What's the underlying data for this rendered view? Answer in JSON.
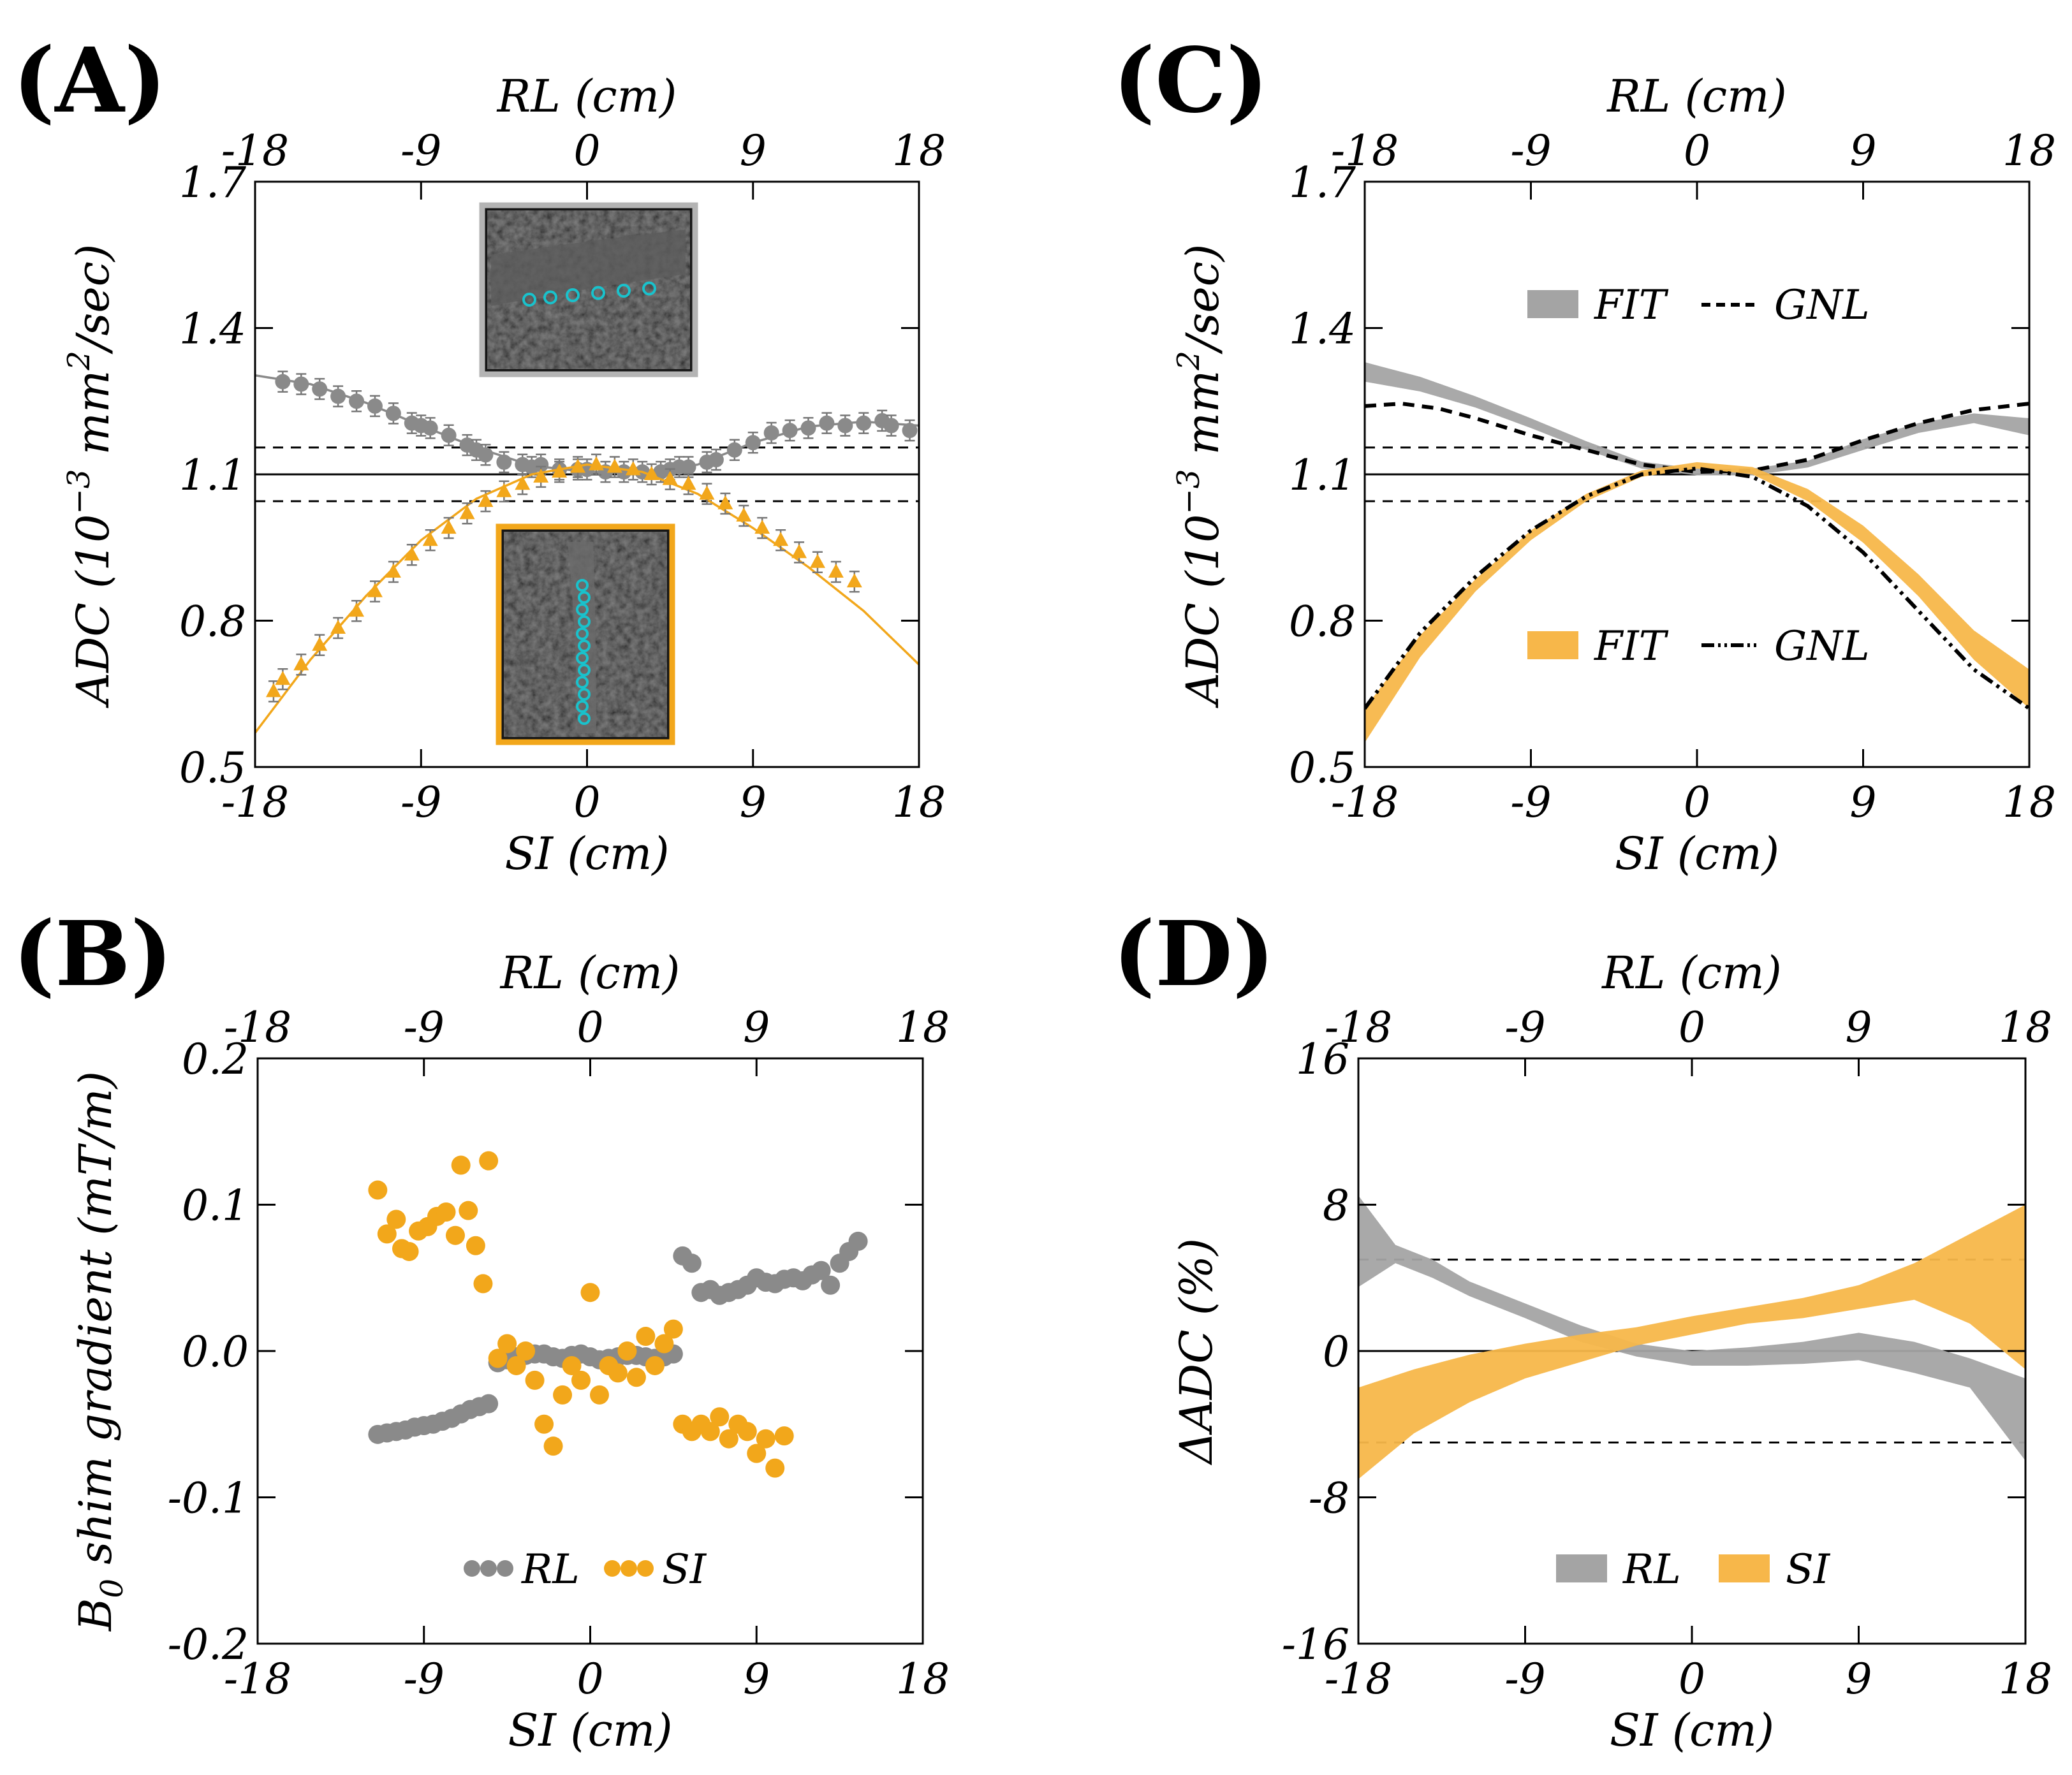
{
  "colors": {
    "gray": "#8a8a8a",
    "gray_band": "#a4a4a4",
    "orange": "#f2a71b",
    "orange_band": "#f7b74a",
    "cyan": "#19c2cc"
  },
  "chart_data": [
    {
      "id": "A",
      "type": "scatter",
      "label": "(A)",
      "title_top": "RL (cm)",
      "xlabel": "SI (cm)",
      "ylabel_parts": [
        "ADC (10",
        "−3",
        " mm",
        "2",
        "/sec)"
      ],
      "xlim": [
        -18,
        18
      ],
      "ylim": [
        0.5,
        1.7
      ],
      "xticks": [
        "-18",
        "-9",
        "0",
        "9",
        "18"
      ],
      "yticks": [
        "0.5",
        "0.8",
        "1.1",
        "1.4",
        "1.7"
      ],
      "reference_lines": [
        {
          "y": 1.1,
          "style": "solid"
        },
        {
          "y": 1.155,
          "style": "dashed"
        },
        {
          "y": 1.045,
          "style": "dashed"
        }
      ],
      "series": [
        {
          "name": "RL",
          "color": "gray",
          "marker": "circle",
          "x": [
            -16.5,
            -15.5,
            -14.5,
            -13.5,
            -12.5,
            -11.5,
            -10.5,
            -9.5,
            -9,
            -8.5,
            -7.5,
            -6.5,
            -6,
            -5.5,
            -4.5,
            -3.5,
            -3,
            -2.5,
            -1.5,
            -0.5,
            0,
            1,
            2,
            3,
            4,
            4.5,
            5,
            5.5,
            6.5,
            7,
            8,
            9,
            10,
            11,
            12,
            13,
            14,
            15,
            16,
            16.5,
            17.5
          ],
          "y": [
            1.29,
            1.285,
            1.275,
            1.26,
            1.25,
            1.24,
            1.225,
            1.205,
            1.2,
            1.195,
            1.18,
            1.16,
            1.15,
            1.14,
            1.125,
            1.12,
            1.115,
            1.12,
            1.11,
            1.11,
            1.11,
            1.105,
            1.105,
            1.105,
            1.105,
            1.11,
            1.115,
            1.115,
            1.125,
            1.13,
            1.15,
            1.165,
            1.185,
            1.19,
            1.195,
            1.205,
            1.2,
            1.205,
            1.21,
            1.2,
            1.19
          ],
          "fit": [
            [
              -18,
              1.303
            ],
            [
              -15,
              1.285
            ],
            [
              -12,
              1.247
            ],
            [
              -9,
              1.2
            ],
            [
              -6,
              1.155
            ],
            [
              -3,
              1.118
            ],
            [
              0,
              1.105
            ],
            [
              3,
              1.104
            ],
            [
              6,
              1.12
            ],
            [
              9,
              1.165
            ],
            [
              12,
              1.198
            ],
            [
              15,
              1.208
            ],
            [
              18,
              1.2
            ]
          ]
        },
        {
          "name": "SI",
          "color": "orange",
          "marker": "triangle",
          "x": [
            -17,
            -16.5,
            -15.5,
            -14.5,
            -13.5,
            -12.5,
            -11.5,
            -10.5,
            -9.5,
            -8.5,
            -7.5,
            -6.5,
            -5.5,
            -4.5,
            -3.5,
            -2.5,
            -1.5,
            -0.5,
            0.5,
            1.5,
            2.5,
            3.5,
            4.5,
            5.5,
            6.5,
            7.5,
            8.5,
            9.5,
            10.5,
            11.5,
            12.5,
            13.5,
            14.5
          ],
          "y": [
            0.655,
            0.68,
            0.71,
            0.75,
            0.785,
            0.82,
            0.86,
            0.9,
            0.935,
            0.965,
            0.99,
            1.02,
            1.045,
            1.065,
            1.08,
            1.095,
            1.105,
            1.115,
            1.12,
            1.115,
            1.11,
            1.1,
            1.09,
            1.08,
            1.06,
            1.04,
            1.015,
            0.99,
            0.965,
            0.94,
            0.92,
            0.9,
            0.88
          ],
          "fit": [
            [
              -18,
              0.57
            ],
            [
              -15,
              0.72
            ],
            [
              -12,
              0.85
            ],
            [
              -9,
              0.965
            ],
            [
              -6,
              1.05
            ],
            [
              -3,
              1.1
            ],
            [
              0,
              1.12
            ],
            [
              3,
              1.105
            ],
            [
              6,
              1.06
            ],
            [
              9,
              0.99
            ],
            [
              12,
              0.91
            ],
            [
              15,
              0.82
            ],
            [
              18,
              0.71
            ]
          ]
        }
      ]
    },
    {
      "id": "B",
      "type": "scatter",
      "label": "(B)",
      "title_top": "RL (cm)",
      "xlabel": "SI (cm)",
      "ylabel_parts": [
        "B",
        "0",
        " shim gradient (mT/m)"
      ],
      "xlim": [
        -18,
        18
      ],
      "ylim": [
        -0.2,
        0.2
      ],
      "xticks": [
        "-18",
        "-9",
        "0",
        "9",
        "18"
      ],
      "yticks": [
        "-0.2",
        "-0.1",
        "0.0",
        "0.1",
        "0.2"
      ],
      "legend": [
        "RL",
        "SI"
      ],
      "series": [
        {
          "name": "RL",
          "color": "gray",
          "x": [
            -11.5,
            -11,
            -10.5,
            -10,
            -9.5,
            -9,
            -8.5,
            -8,
            -7.5,
            -7,
            -6.5,
            -6,
            -5.5,
            -5,
            -4.5,
            -4,
            -3.5,
            -3,
            -2.5,
            -2,
            -1.5,
            -1,
            -0.5,
            0,
            0.5,
            1,
            1.5,
            2,
            2.5,
            3,
            3.5,
            4,
            4.5,
            5,
            5.5,
            6,
            6.5,
            7,
            7.5,
            8,
            8.5,
            9,
            9.5,
            10,
            10.5,
            11,
            11.5,
            12,
            12.5,
            13,
            13.5,
            14,
            14.5
          ],
          "y": [
            -0.057,
            -0.056,
            -0.055,
            -0.054,
            -0.052,
            -0.051,
            -0.05,
            -0.048,
            -0.046,
            -0.043,
            -0.04,
            -0.038,
            -0.036,
            -0.008,
            -0.006,
            -0.004,
            -0.003,
            -0.002,
            -0.002,
            -0.004,
            -0.005,
            -0.003,
            -0.002,
            -0.004,
            -0.006,
            -0.005,
            -0.004,
            -0.003,
            -0.003,
            -0.004,
            -0.005,
            -0.004,
            -0.002,
            0.065,
            0.06,
            0.04,
            0.042,
            0.038,
            0.04,
            0.042,
            0.045,
            0.05,
            0.047,
            0.046,
            0.049,
            0.05,
            0.048,
            0.052,
            0.055,
            0.045,
            0.06,
            0.068,
            0.075
          ]
        },
        {
          "name": "SI",
          "color": "orange",
          "x": [
            -11.5,
            -11,
            -10.5,
            -10.2,
            -9.8,
            -9.3,
            -8.8,
            -8.3,
            -7.8,
            -7.3,
            -7,
            -6.6,
            -6.2,
            -5.8,
            -5.5,
            -5,
            -4.5,
            -4,
            -3.5,
            -3,
            -2.5,
            -2,
            -1.5,
            -1,
            -0.5,
            0,
            0.5,
            1,
            1.5,
            2,
            2.5,
            3,
            3.5,
            4,
            4.5,
            5,
            5.5,
            6,
            6.5,
            7,
            7.5,
            8,
            8.5,
            9,
            9.5,
            10,
            10.5
          ],
          "y": [
            0.11,
            0.08,
            0.09,
            0.07,
            0.068,
            0.082,
            0.085,
            0.092,
            0.095,
            0.079,
            0.127,
            0.096,
            0.072,
            0.046,
            0.13,
            -0.005,
            0.005,
            -0.01,
            0.0,
            -0.02,
            -0.05,
            -0.065,
            -0.03,
            -0.01,
            -0.02,
            0.04,
            -0.03,
            -0.01,
            -0.015,
            0.0,
            -0.018,
            0.01,
            -0.01,
            0.005,
            0.015,
            -0.05,
            -0.055,
            -0.05,
            -0.055,
            -0.045,
            -0.06,
            -0.05,
            -0.055,
            -0.07,
            -0.06,
            -0.08,
            -0.058
          ]
        }
      ]
    },
    {
      "id": "C",
      "type": "area",
      "label": "(C)",
      "title_top": "RL (cm)",
      "xlabel": "SI (cm)",
      "ylabel_parts": [
        "ADC (10",
        "−3",
        " mm",
        "2",
        "/sec)"
      ],
      "xlim": [
        -18,
        18
      ],
      "ylim": [
        0.5,
        1.7
      ],
      "xticks": [
        "-18",
        "-9",
        "0",
        "9",
        "18"
      ],
      "yticks": [
        "0.5",
        "0.8",
        "1.1",
        "1.4",
        "1.7"
      ],
      "reference_lines": [
        {
          "y": 1.1,
          "style": "solid"
        },
        {
          "y": 1.155,
          "style": "dashed"
        },
        {
          "y": 1.045,
          "style": "dashed"
        }
      ],
      "legend": [
        "FIT",
        "GNL",
        "FIT",
        "GNL"
      ],
      "series": [
        {
          "name": "FIT (RL)",
          "color": "gray_band",
          "x": [
            -18,
            -15,
            -12,
            -9,
            -6,
            -3,
            0,
            3,
            6,
            9,
            12,
            15,
            18
          ],
          "lower": [
            1.29,
            1.27,
            1.237,
            1.195,
            1.15,
            1.112,
            1.098,
            1.098,
            1.114,
            1.15,
            1.185,
            1.205,
            1.18
          ],
          "upper": [
            1.33,
            1.3,
            1.26,
            1.215,
            1.168,
            1.126,
            1.112,
            1.112,
            1.128,
            1.172,
            1.205,
            1.225,
            1.215
          ]
        },
        {
          "name": "GNL (RL)",
          "color": "#000",
          "style": "dashed",
          "x": [
            -18,
            -16,
            -14,
            -12,
            -9,
            -6,
            -3,
            0,
            3,
            6,
            9,
            12,
            15,
            18
          ],
          "y": [
            1.24,
            1.245,
            1.235,
            1.215,
            1.18,
            1.15,
            1.12,
            1.105,
            1.108,
            1.13,
            1.17,
            1.205,
            1.232,
            1.245
          ]
        },
        {
          "name": "FIT (SI)",
          "color": "orange_band",
          "x": [
            -18,
            -15,
            -12,
            -9,
            -6,
            -3,
            0,
            3,
            6,
            9,
            12,
            15,
            18
          ],
          "lower": [
            0.55,
            0.725,
            0.86,
            0.965,
            1.045,
            1.095,
            1.112,
            1.1,
            1.045,
            0.96,
            0.85,
            0.72,
            0.62
          ],
          "upper": [
            0.62,
            0.77,
            0.885,
            0.985,
            1.06,
            1.108,
            1.125,
            1.115,
            1.07,
            0.995,
            0.895,
            0.78,
            0.7
          ]
        },
        {
          "name": "GNL (SI)",
          "color": "#000",
          "style": "dashdot",
          "x": [
            -18,
            -15,
            -12,
            -9,
            -6,
            -3,
            0,
            3,
            6,
            9,
            12,
            15,
            18
          ],
          "y": [
            0.62,
            0.775,
            0.89,
            0.985,
            1.055,
            1.1,
            1.112,
            1.095,
            1.035,
            0.94,
            0.82,
            0.7,
            0.62
          ]
        }
      ]
    },
    {
      "id": "D",
      "type": "area",
      "label": "(D)",
      "title_top": "RL (cm)",
      "xlabel": "SI (cm)",
      "ylabel": "ΔADC (%)",
      "xlim": [
        -18,
        18
      ],
      "ylim": [
        -16,
        16
      ],
      "xticks": [
        "-18",
        "-9",
        "0",
        "9",
        "18"
      ],
      "yticks": [
        "-16",
        "-8",
        "0",
        "8",
        "16"
      ],
      "reference_lines": [
        {
          "y": 0,
          "style": "solid"
        },
        {
          "y": 5,
          "style": "dashed"
        },
        {
          "y": -5,
          "style": "dashed"
        }
      ],
      "legend": [
        "RL",
        "SI"
      ],
      "series": [
        {
          "name": "RL",
          "color": "gray_band",
          "x": [
            -18,
            -16,
            -14,
            -12,
            -9,
            -6,
            -3,
            0,
            3,
            6,
            9,
            12,
            15,
            18
          ],
          "lower": [
            3.5,
            4.8,
            4.0,
            3.0,
            1.8,
            0.5,
            -0.3,
            -0.8,
            -0.8,
            -0.7,
            -0.5,
            -1.2,
            -2.0,
            -6.0
          ],
          "upper": [
            8.5,
            5.8,
            5.0,
            3.8,
            2.6,
            1.4,
            0.4,
            0.0,
            0.2,
            0.5,
            1.0,
            0.5,
            -0.4,
            -1.5
          ]
        },
        {
          "name": "SI",
          "color": "orange_band",
          "x": [
            -18,
            -15,
            -12,
            -9,
            -6,
            -3,
            0,
            3,
            6,
            9,
            12,
            15,
            18
          ],
          "lower": [
            -7.0,
            -4.5,
            -2.8,
            -1.5,
            -0.6,
            0.3,
            0.9,
            1.5,
            1.8,
            2.3,
            2.8,
            1.5,
            -1.0
          ],
          "upper": [
            -2.0,
            -1.0,
            -0.2,
            0.4,
            0.9,
            1.3,
            1.9,
            2.4,
            2.9,
            3.6,
            4.8,
            6.4,
            8.0
          ]
        }
      ]
    }
  ],
  "insets": [
    {
      "name": "inset-rl-image",
      "border": "gray"
    },
    {
      "name": "inset-si-image",
      "border": "orange"
    }
  ]
}
